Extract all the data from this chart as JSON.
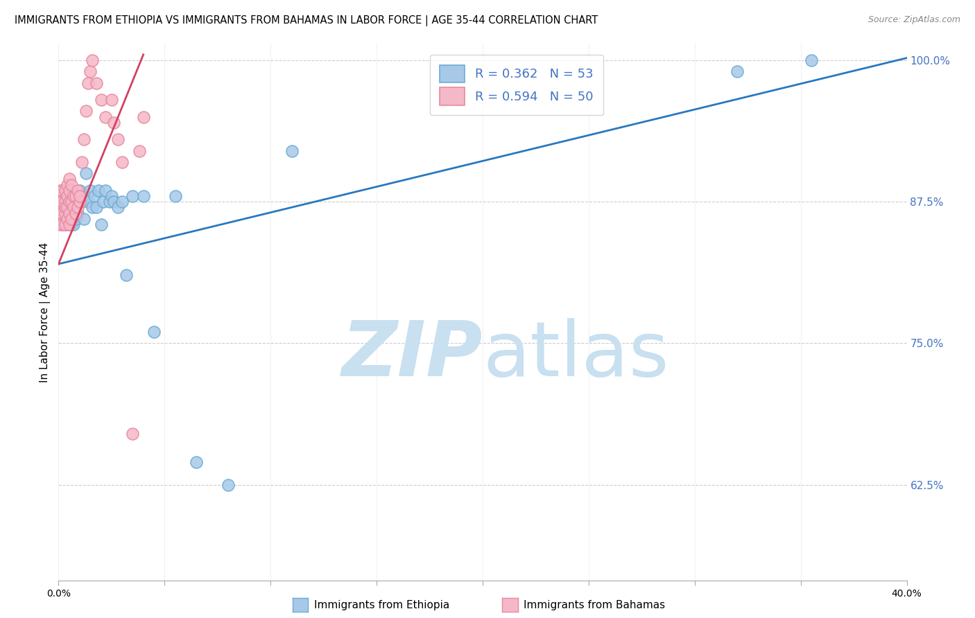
{
  "title": "IMMIGRANTS FROM ETHIOPIA VS IMMIGRANTS FROM BAHAMAS IN LABOR FORCE | AGE 35-44 CORRELATION CHART",
  "source": "Source: ZipAtlas.com",
  "ylabel": "In Labor Force | Age 35-44",
  "legend_blue_r": "R = 0.362",
  "legend_blue_n": "N = 53",
  "legend_pink_r": "R = 0.594",
  "legend_pink_n": "N = 50",
  "legend_label_blue": "Immigrants from Ethiopia",
  "legend_label_pink": "Immigrants from Bahamas",
  "blue_color": "#a8c8e8",
  "pink_color": "#f5b8c8",
  "blue_edge_color": "#6aaed6",
  "pink_edge_color": "#e88aa0",
  "blue_line_color": "#2878c0",
  "pink_line_color": "#d44060",
  "watermark_zip": "ZIP",
  "watermark_atlas": "atlas",
  "watermark_color": "#c8e0f0",
  "x_min": 0.0,
  "x_max": 0.4,
  "y_min": 0.54,
  "y_max": 1.015,
  "blue_scatter_x": [
    0.001,
    0.001,
    0.002,
    0.002,
    0.003,
    0.003,
    0.003,
    0.004,
    0.004,
    0.004,
    0.005,
    0.005,
    0.005,
    0.005,
    0.006,
    0.006,
    0.006,
    0.007,
    0.007,
    0.007,
    0.008,
    0.008,
    0.009,
    0.009,
    0.01,
    0.01,
    0.011,
    0.012,
    0.013,
    0.014,
    0.015,
    0.016,
    0.017,
    0.018,
    0.019,
    0.02,
    0.021,
    0.022,
    0.024,
    0.025,
    0.026,
    0.028,
    0.03,
    0.032,
    0.035,
    0.04,
    0.045,
    0.055,
    0.065,
    0.08,
    0.11,
    0.32,
    0.355
  ],
  "blue_scatter_y": [
    0.87,
    0.86,
    0.875,
    0.885,
    0.855,
    0.87,
    0.88,
    0.865,
    0.875,
    0.885,
    0.855,
    0.865,
    0.875,
    0.885,
    0.855,
    0.865,
    0.875,
    0.855,
    0.87,
    0.88,
    0.86,
    0.875,
    0.865,
    0.88,
    0.875,
    0.885,
    0.875,
    0.86,
    0.9,
    0.875,
    0.885,
    0.87,
    0.88,
    0.87,
    0.885,
    0.855,
    0.875,
    0.885,
    0.875,
    0.88,
    0.875,
    0.87,
    0.875,
    0.81,
    0.88,
    0.88,
    0.76,
    0.88,
    0.645,
    0.625,
    0.92,
    0.99,
    1.0
  ],
  "pink_scatter_x": [
    0.001,
    0.001,
    0.001,
    0.001,
    0.001,
    0.002,
    0.002,
    0.002,
    0.002,
    0.003,
    0.003,
    0.003,
    0.003,
    0.003,
    0.004,
    0.004,
    0.004,
    0.004,
    0.005,
    0.005,
    0.005,
    0.005,
    0.005,
    0.006,
    0.006,
    0.006,
    0.007,
    0.007,
    0.008,
    0.008,
    0.009,
    0.009,
    0.01,
    0.01,
    0.011,
    0.012,
    0.013,
    0.014,
    0.015,
    0.016,
    0.018,
    0.02,
    0.022,
    0.025,
    0.026,
    0.028,
    0.03,
    0.035,
    0.038,
    0.04
  ],
  "pink_scatter_y": [
    0.87,
    0.855,
    0.865,
    0.875,
    0.885,
    0.855,
    0.865,
    0.875,
    0.885,
    0.855,
    0.865,
    0.875,
    0.885,
    0.87,
    0.86,
    0.87,
    0.88,
    0.89,
    0.855,
    0.865,
    0.875,
    0.885,
    0.895,
    0.86,
    0.875,
    0.89,
    0.87,
    0.88,
    0.865,
    0.88,
    0.87,
    0.885,
    0.875,
    0.88,
    0.91,
    0.93,
    0.955,
    0.98,
    0.99,
    1.0,
    0.98,
    0.965,
    0.95,
    0.965,
    0.945,
    0.93,
    0.91,
    0.67,
    0.92,
    0.95
  ],
  "blue_line_x": [
    0.0,
    0.4
  ],
  "blue_line_y": [
    0.82,
    1.002
  ],
  "pink_line_x": [
    0.0,
    0.04
  ],
  "pink_line_y": [
    0.82,
    1.005
  ],
  "grid_color": "#cccccc",
  "background_color": "#ffffff",
  "axis_label_color": "#4472c4",
  "right_tick_color": "#4472c4",
  "legend_text_color": "#4472c4",
  "xtick_positions": [
    0.0,
    0.05,
    0.1,
    0.15,
    0.2,
    0.25,
    0.3,
    0.35,
    0.4
  ],
  "ytick_right": [
    1.0,
    0.875,
    0.75,
    0.625
  ],
  "ytick_right_labels": [
    "100.0%",
    "87.5%",
    "75.0%",
    "62.5%"
  ]
}
